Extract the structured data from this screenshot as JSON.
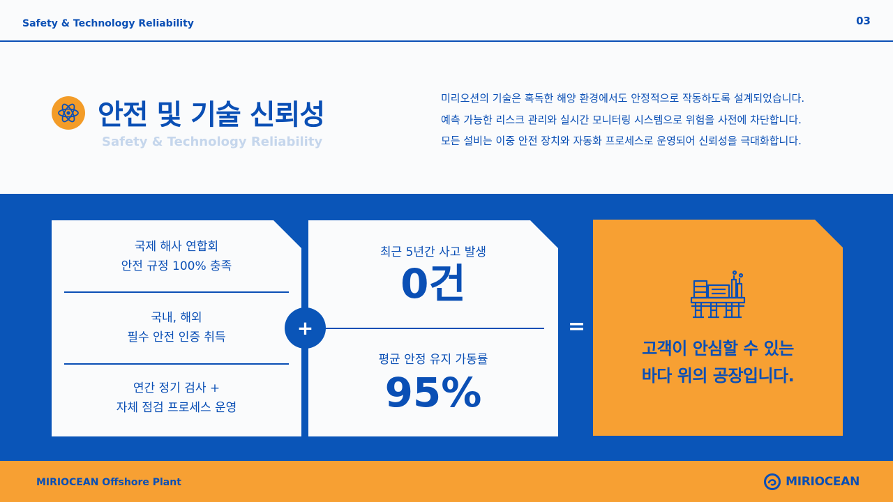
{
  "header": {
    "section_label": "Safety & Technology Reliability",
    "page_number": "03"
  },
  "title_block": {
    "icon": "atom-icon",
    "title": "안전 및 기술 신뢰성",
    "subtitle": "Safety & Technology Reliability"
  },
  "intro": [
    "미리오션의 기술은 혹독한 해양 환경에서도 안정적으로 작동하도록 설계되었습니다.",
    "예측 가능한 리스크 관리와 실시간 모니터링 시스템으로 위험을 사전에 차단합니다.",
    "모든 설비는 이중 안전 장치와 자동화 프로세스로 운영되어 신뢰성을 극대화합니다."
  ],
  "card_standards": [
    [
      "국제 해사 연합회",
      "안전 규정 100% 충족"
    ],
    [
      "국내, 해외",
      "필수 안전 인증 취득"
    ],
    [
      "연간 정기 검사 +",
      "자체 점검 프로세스 운영"
    ]
  ],
  "card_stats": [
    {
      "label": "최근 5년간 사고 발생",
      "value": "0건"
    },
    {
      "label": "평균 안정 유지 가동률",
      "value": "95%"
    }
  ],
  "operators": {
    "plus": "+",
    "equals": "="
  },
  "card_result": {
    "icon": "offshore-plant-icon",
    "lines": [
      "고객이 안심할 수 있는",
      "바다 위의 공장입니다."
    ]
  },
  "footer": {
    "left": "MIRIOCEAN Offshore Plant",
    "logo_icon": "wave-logo-icon",
    "logo_text": "MIRIOCEAN"
  },
  "colors": {
    "primary": "#0a55b8",
    "accent": "#f7a033",
    "background": "#fafbfc"
  }
}
